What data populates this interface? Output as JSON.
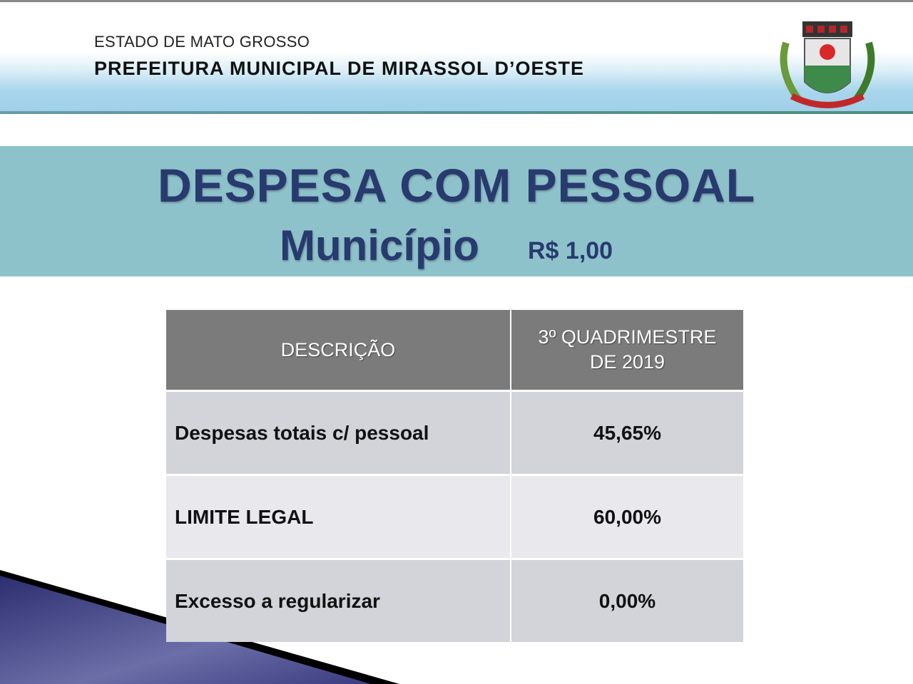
{
  "header": {
    "state": "ESTADO DE MATO GROSSO",
    "prefecture": "PREFEITURA MUNICIPAL DE MIRASSOL D’OESTE"
  },
  "slide": {
    "title": "DESPESA COM PESSOAL",
    "subtitle": "Município",
    "unit": "R$ 1,00"
  },
  "table": {
    "headers": [
      "DESCRIÇÃO",
      "3º QUADRIMESTRE DE 2019"
    ],
    "rows": [
      {
        "description": "Despesas totais c/ pessoal",
        "value": "45,65%"
      },
      {
        "description": "LIMITE LEGAL",
        "value": "60,00%"
      },
      {
        "description": "Excesso a regularizar",
        "value": "0,00%"
      }
    ]
  },
  "colors": {
    "title": "#283a6e",
    "band": "#8dc2cb",
    "table_header": "#7b7b7b"
  }
}
